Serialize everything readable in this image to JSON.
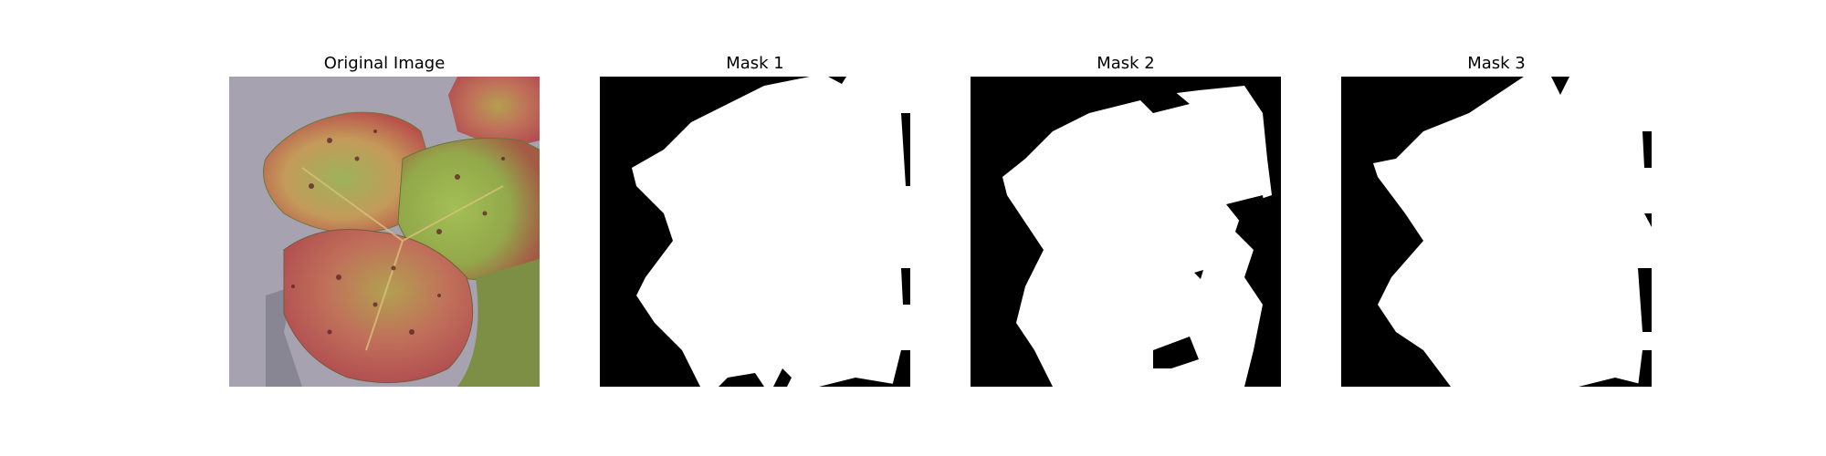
{
  "figure": {
    "panels": [
      {
        "title": "Original Image",
        "content": "strawberry-leaf-photo"
      },
      {
        "title": "Mask 1",
        "content": "binary-mask"
      },
      {
        "title": "Mask 2",
        "content": "binary-mask"
      },
      {
        "title": "Mask 3",
        "content": "binary-mask"
      }
    ]
  },
  "colors": {
    "mask_foreground": "#ffffff",
    "mask_background": "#000000",
    "photo_background": "#a9a5b1",
    "leaf_green": "#8aa24a",
    "leaf_red": "#b44a45",
    "spot_dark": "#5a1f2a"
  }
}
